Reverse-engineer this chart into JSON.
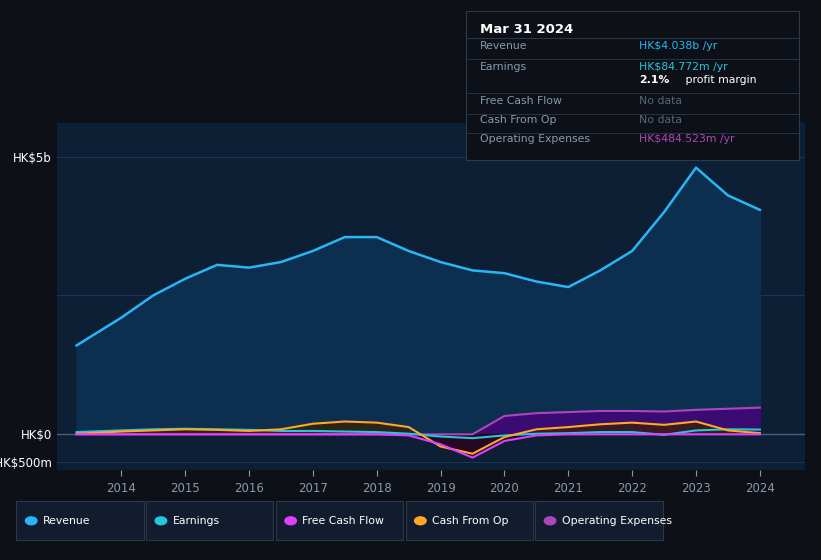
{
  "background_color": "#0d1117",
  "plot_bg_color": "#0d1f35",
  "years": [
    2013.3,
    2014,
    2014.5,
    2015,
    2015.5,
    2016,
    2016.5,
    2017,
    2017.5,
    2018,
    2018.5,
    2019,
    2019.5,
    2020,
    2020.5,
    2021,
    2021.5,
    2022,
    2022.5,
    2023,
    2023.5,
    2024
  ],
  "revenue": [
    1.6,
    2.1,
    2.5,
    2.8,
    3.05,
    3.0,
    3.1,
    3.3,
    3.55,
    3.55,
    3.3,
    3.1,
    2.95,
    2.9,
    2.75,
    2.65,
    2.95,
    3.3,
    4.0,
    4.8,
    4.3,
    4.04
  ],
  "earnings": [
    0.04,
    0.07,
    0.09,
    0.1,
    0.09,
    0.08,
    0.06,
    0.06,
    0.05,
    0.04,
    0.01,
    -0.04,
    -0.07,
    -0.02,
    0.01,
    0.02,
    0.04,
    0.04,
    -0.01,
    0.07,
    0.09,
    0.085
  ],
  "free_cash_flow": [
    0.0,
    0.0,
    0.0,
    0.0,
    0.0,
    0.0,
    0.0,
    0.0,
    0.0,
    0.0,
    -0.02,
    -0.18,
    -0.42,
    -0.12,
    -0.02,
    0.0,
    0.0,
    0.0,
    0.0,
    0.0,
    0.0,
    0.0
  ],
  "cash_from_op": [
    0.01,
    0.05,
    0.07,
    0.09,
    0.08,
    0.06,
    0.09,
    0.19,
    0.23,
    0.21,
    0.13,
    -0.22,
    -0.35,
    -0.05,
    0.09,
    0.13,
    0.18,
    0.21,
    0.17,
    0.23,
    0.07,
    0.02
  ],
  "operating_expenses": [
    0.0,
    0.0,
    0.0,
    0.0,
    0.0,
    0.0,
    0.0,
    0.0,
    0.0,
    0.0,
    0.0,
    0.0,
    0.0,
    0.33,
    0.38,
    0.4,
    0.42,
    0.42,
    0.41,
    0.44,
    0.46,
    0.48
  ],
  "revenue_color": "#29b6f6",
  "earnings_color": "#26c6da",
  "free_cash_flow_color": "#e040fb",
  "cash_from_op_color": "#ffa726",
  "operating_expenses_color": "#ab47bc",
  "revenue_fill_color": "#0d2f4f",
  "grid_color": "#1e3a5f",
  "text_color": "#8899aa",
  "label_color": "#ffffff",
  "ytick_labels": [
    "HK$5b",
    "HK$0",
    "-HK$500m"
  ],
  "ytick_values": [
    5.0,
    0.0,
    -0.5
  ],
  "xtick_labels": [
    "2014",
    "2015",
    "2016",
    "2017",
    "2018",
    "2019",
    "2020",
    "2021",
    "2022",
    "2023",
    "2024"
  ],
  "xtick_values": [
    2014,
    2015,
    2016,
    2017,
    2018,
    2019,
    2020,
    2021,
    2022,
    2023,
    2024
  ],
  "ylim": [
    -0.65,
    5.6
  ],
  "xlim": [
    2013.0,
    2024.7
  ],
  "tooltip_title": "Mar 31 2024",
  "legend_items": [
    {
      "label": "Revenue",
      "color": "#29b6f6"
    },
    {
      "label": "Earnings",
      "color": "#26c6da"
    },
    {
      "label": "Free Cash Flow",
      "color": "#e040fb"
    },
    {
      "label": "Cash From Op",
      "color": "#ffa726"
    },
    {
      "label": "Operating Expenses",
      "color": "#ab47bc"
    }
  ]
}
